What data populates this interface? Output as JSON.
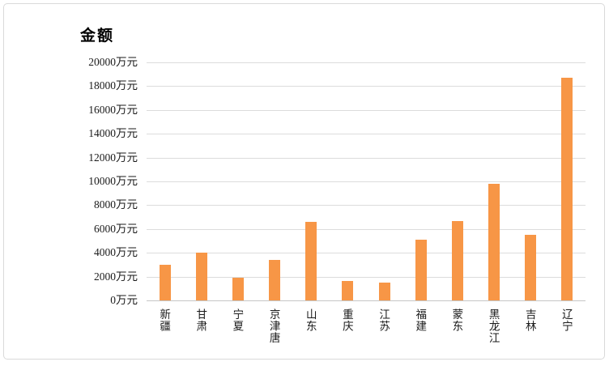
{
  "chart_data": {
    "type": "bar",
    "title": "金额",
    "categories": [
      "新疆",
      "甘肃",
      "宁夏",
      "京津唐",
      "山东",
      "重庆",
      "江苏",
      "福建",
      "蒙东",
      "黑龙江",
      "吉林",
      "辽宁"
    ],
    "values": [
      3000,
      4000,
      1900,
      3400,
      6600,
      1600,
      1500,
      5100,
      6700,
      9800,
      5500,
      18700
    ],
    "unit": "万元",
    "ylim": [
      0,
      20000
    ],
    "ytick_interval": 2000,
    "ytick_labels": [
      "0万元",
      "2000万元",
      "4000万元",
      "6000万元",
      "8000万元",
      "10000万元",
      "12000万元",
      "14000万元",
      "16000万元",
      "18000万元",
      "20000万元"
    ],
    "grid": true,
    "legend_position": "none",
    "xlabel": "",
    "ylabel": "金额"
  },
  "colors": {
    "bar": "#F79646",
    "gridline": "#DCDCDC",
    "axis_line": "#C6C6C6",
    "text": "#1A1A1A",
    "frame_border": "#D9D9D9",
    "background": "#FFFFFF"
  }
}
